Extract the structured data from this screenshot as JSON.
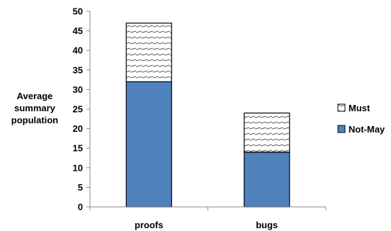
{
  "chart_data": {
    "type": "bar",
    "stacked": true,
    "categories": [
      "proofs",
      "bugs"
    ],
    "series": [
      {
        "name": "Not-May",
        "values": [
          32,
          14
        ],
        "color": "#4f81bd",
        "fill": "solid"
      },
      {
        "name": "Must",
        "values": [
          15,
          10
        ],
        "color": "#ffffff",
        "fill": "hatched"
      }
    ],
    "ylabel": [
      "Average",
      "summary",
      "population"
    ],
    "ylim": [
      0,
      50
    ],
    "yticks": [
      0,
      5,
      10,
      15,
      20,
      25,
      30,
      35,
      40,
      45,
      50
    ],
    "grid": false,
    "legend": {
      "position": "right",
      "order": [
        "Must",
        "Not-May"
      ]
    }
  }
}
